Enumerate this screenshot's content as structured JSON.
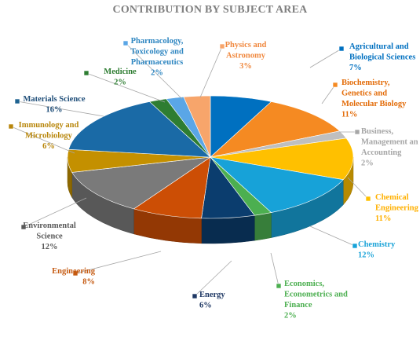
{
  "chart_data": {
    "type": "pie",
    "title": "CONTRIBUTION BY SUBJECT AREA",
    "series": [
      {
        "label_lines": [
          "Agricultural and",
          "Biological Sciences"
        ],
        "value_label": "7%",
        "value": 7,
        "color": "#0070c0",
        "text_color": "#0070c0",
        "marker_color": "#0070c0"
      },
      {
        "label_lines": [
          "Biochemistry,",
          "Genetics and",
          "Molecular Biology"
        ],
        "value_label": "11%",
        "value": 11,
        "color": "#f58a22",
        "text_color": "#e36c09",
        "marker_color": "#f58a22"
      },
      {
        "label_lines": [
          "Business,",
          "Management an",
          "Accounting"
        ],
        "value_label": "2%",
        "value": 2,
        "color": "#bfbfbf",
        "text_color": "#a6a6a6",
        "marker_color": "#a6a6a6"
      },
      {
        "label_lines": [
          "Chemical",
          "Engineering"
        ],
        "value_label": "11%",
        "value": 11,
        "color": "#ffc000",
        "text_color": "#ffb000",
        "marker_color": "#ffc000"
      },
      {
        "label_lines": [
          "Chemistry"
        ],
        "value_label": "12%",
        "value": 12,
        "color": "#17a2d8",
        "text_color": "#1aa3d8",
        "marker_color": "#17a2d8"
      },
      {
        "label_lines": [
          "Economics,",
          "Econometrics and",
          "Finance"
        ],
        "value_label": "2%",
        "value": 2,
        "color": "#4caf50",
        "text_color": "#4caf50",
        "marker_color": "#4caf50"
      },
      {
        "label_lines": [
          "Energy"
        ],
        "value_label": "6%",
        "value": 6,
        "color": "#0b3d6e",
        "text_color": "#1f3864",
        "marker_color": "#1f3864"
      },
      {
        "label_lines": [
          "Engineering"
        ],
        "value_label": "8%",
        "value": 8,
        "color": "#cc4e05",
        "text_color": "#c55a11",
        "marker_color": "#c55a11"
      },
      {
        "label_lines": [
          "Environmental",
          "Science"
        ],
        "value_label": "12%",
        "value": 12,
        "color": "#7a7a7a",
        "text_color": "#595959",
        "marker_color": "#595959"
      },
      {
        "label_lines": [
          "Immunology and",
          "Microbiology"
        ],
        "value_label": "6%",
        "value": 6,
        "color": "#c49000",
        "text_color": "#b8860b",
        "marker_color": "#b8860b"
      },
      {
        "label_lines": [
          "Materials Science"
        ],
        "value_label": "16%",
        "value": 16,
        "color": "#1a6aa6",
        "text_color": "#1f4e79",
        "marker_color": "#1f6391"
      },
      {
        "label_lines": [
          "Medicine"
        ],
        "value_label": "2%",
        "value": 2,
        "color": "#2e7d32",
        "text_color": "#2e7d32",
        "marker_color": "#2e7d32"
      },
      {
        "label_lines": [
          "Pharmacology,",
          "Toxicology and",
          "Pharmaceutics"
        ],
        "value_label": "2%",
        "value": 2,
        "color": "#5aa6e6",
        "text_color": "#2e86c1",
        "marker_color": "#5aa6e6"
      },
      {
        "label_lines": [
          "Physics and",
          "Astronomy"
        ],
        "value_label": "3%",
        "value": 3,
        "color": "#f7a56b",
        "text_color": "#f0883e",
        "marker_color": "#f7a56b"
      }
    ],
    "legend": "none"
  }
}
